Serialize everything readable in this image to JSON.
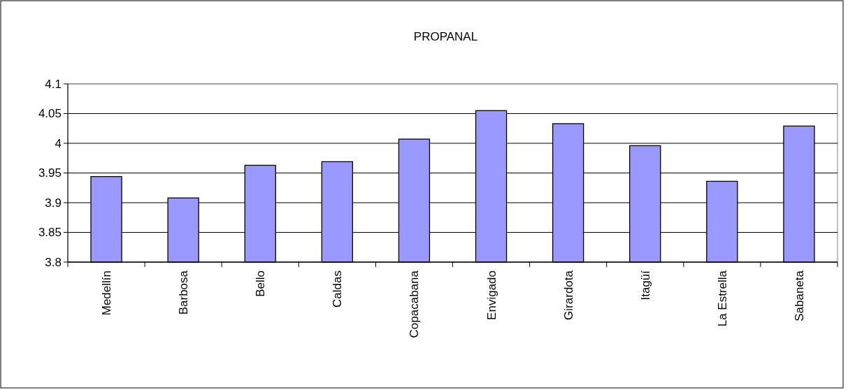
{
  "chart_data": {
    "type": "bar",
    "title": "PROPANAL",
    "categories": [
      "Medellín",
      "Barbosa",
      "Bello",
      "Caldas",
      "Copacabana",
      "Envigado",
      "Girardota",
      "Itagüí",
      "La Estrella",
      "Sabaneta"
    ],
    "values": [
      3.944,
      3.908,
      3.963,
      3.969,
      4.007,
      4.055,
      4.033,
      3.996,
      3.936,
      4.029
    ],
    "color": "#9999ff",
    "ylim": [
      3.8,
      4.1
    ],
    "yticks": [
      3.8,
      3.85,
      3.9,
      3.95,
      4,
      4.05,
      4.1
    ],
    "grid": "y"
  }
}
